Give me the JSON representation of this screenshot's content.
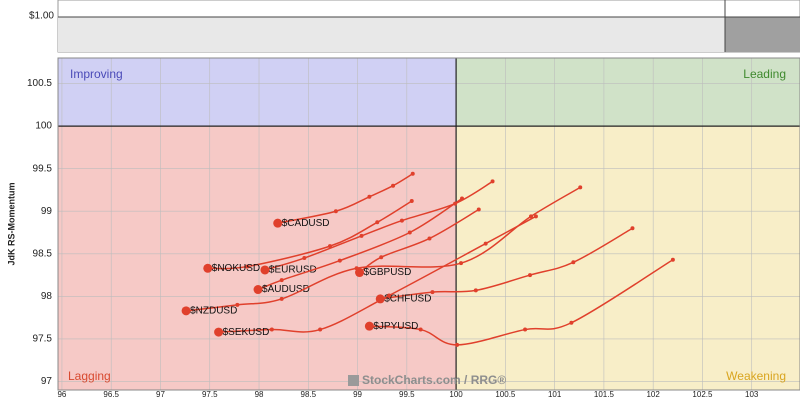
{
  "top_panel": {
    "label": "$1.00"
  },
  "chart_data": {
    "type": "rrg",
    "y_label": "JdK RS-Momentum",
    "watermark": "StockCharts.com / RRG®",
    "xlim": [
      95.96,
      103.49
    ],
    "ylim": [
      96.9,
      100.8
    ],
    "center": [
      100,
      100
    ],
    "xticks": [
      96,
      96.5,
      97,
      97.5,
      98,
      98.5,
      99,
      99.5,
      100,
      100.5,
      101,
      101.5,
      102,
      102.5,
      103
    ],
    "yticks": [
      97,
      97.5,
      98,
      98.5,
      99,
      99.5,
      100,
      100.5
    ],
    "grid": true,
    "quadrants": [
      {
        "name": "Improving",
        "color": "#d0d0f4",
        "text_color": "#4a4ab8"
      },
      {
        "name": "Leading",
        "color": "#d0e2c8",
        "text_color": "#3f8a2e"
      },
      {
        "name": "Lagging",
        "color": "#f6c9c6",
        "text_color": "#d84a30"
      },
      {
        "name": "Weakening",
        "color": "#f8eec8",
        "text_color": "#d9a520"
      }
    ],
    "series": [
      {
        "name": "$CADUSD",
        "color": "#e0402c",
        "x": [
          98.19,
          98.78,
          99.12,
          99.36,
          99.56
        ],
        "values": [
          98.86,
          99.0,
          99.17,
          99.3,
          99.44
        ]
      },
      {
        "name": "$NOKUSD",
        "color": "#e0402c",
        "x": [
          97.48,
          97.88,
          98.72,
          99.2,
          99.55
        ],
        "values": [
          98.33,
          98.35,
          98.59,
          98.87,
          99.12
        ]
      },
      {
        "name": "$EURUSD",
        "color": "#e0402c",
        "x": [
          98.06,
          98.46,
          99.04,
          99.45,
          99.99,
          100.37
        ],
        "values": [
          98.31,
          98.45,
          98.71,
          98.89,
          99.09,
          99.35
        ]
      },
      {
        "name": "$GBPUSD",
        "color": "#e0402c",
        "x": [
          99.02,
          99.24,
          99.73,
          100.23
        ],
        "values": [
          98.28,
          98.46,
          98.68,
          99.02
        ]
      },
      {
        "name": "$AUDUSD",
        "color": "#e0402c",
        "x": [
          97.99,
          98.23,
          98.82,
          99.53,
          100.06
        ],
        "values": [
          98.08,
          98.19,
          98.42,
          98.75,
          99.15
        ]
      },
      {
        "name": "$CHFUSD",
        "color": "#e0402c",
        "x": [
          99.23,
          99.76,
          100.2,
          100.75,
          101.19,
          101.79
        ],
        "values": [
          97.97,
          98.05,
          98.07,
          98.25,
          98.4,
          98.8
        ]
      },
      {
        "name": "$JPYUSD",
        "color": "#e0402c",
        "x": [
          99.12,
          99.64,
          100.01,
          100.7,
          101.17,
          102.2
        ],
        "values": [
          97.65,
          97.61,
          97.43,
          97.61,
          97.69,
          98.43
        ]
      },
      {
        "name": "$NZDUSD",
        "color": "#e0402c",
        "x": [
          97.26,
          97.78,
          98.23,
          98.99,
          100.05,
          100.76,
          101.26
        ],
        "values": [
          97.83,
          97.9,
          97.97,
          98.33,
          98.39,
          98.94,
          99.28
        ]
      },
      {
        "name": "$SEKUSD",
        "color": "#e0402c",
        "x": [
          97.59,
          98.13,
          98.62,
          99.32,
          100.3,
          100.81
        ],
        "values": [
          97.58,
          97.61,
          97.61,
          98.01,
          98.62,
          98.94
        ]
      }
    ]
  }
}
